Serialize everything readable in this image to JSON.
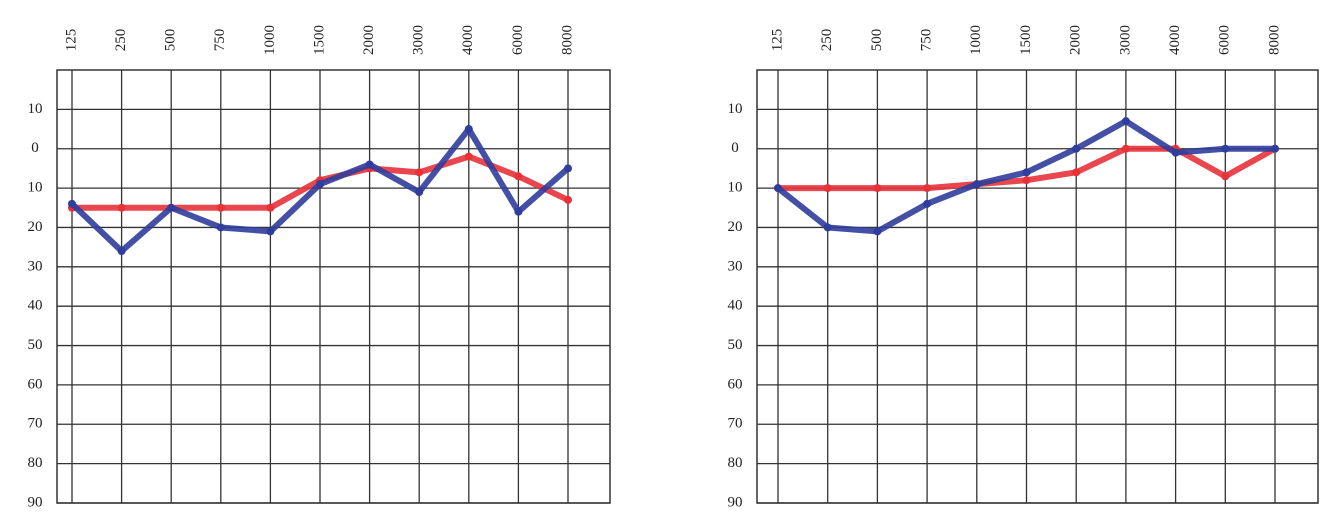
{
  "chart_data": [
    {
      "type": "line",
      "categories": [
        "125",
        "250",
        "500",
        "750",
        "1000",
        "1500",
        "2000",
        "3000",
        "4000",
        "6000",
        "8000"
      ],
      "ylim": [
        90,
        -20
      ],
      "yticks": [
        {
          "value": -10,
          "label": "10"
        },
        0,
        10,
        20,
        30,
        40,
        50,
        60,
        70,
        80,
        90
      ],
      "grid": true,
      "series": [
        {
          "color": "#e8323a",
          "values": [
            15,
            15,
            15,
            15,
            15,
            8,
            5,
            6,
            2,
            7,
            13
          ]
        },
        {
          "color": "#2f3d9c",
          "values": [
            14,
            26,
            15,
            20,
            21,
            9,
            4,
            11,
            -5,
            16,
            5
          ]
        }
      ]
    },
    {
      "type": "line",
      "categories": [
        "125",
        "250",
        "500",
        "750",
        "1000",
        "1500",
        "2000",
        "3000",
        "4000",
        "6000",
        "8000"
      ],
      "ylim": [
        90,
        -20
      ],
      "yticks": [
        {
          "value": -10,
          "label": "10"
        },
        0,
        10,
        20,
        30,
        40,
        50,
        60,
        70,
        80,
        90
      ],
      "grid": true,
      "series": [
        {
          "color": "#e8323a",
          "values": [
            10,
            10,
            10,
            10,
            9,
            8,
            6,
            0,
            0,
            7,
            0
          ]
        },
        {
          "color": "#2f3d9c",
          "values": [
            10,
            20,
            21,
            14,
            9,
            6,
            0,
            -7,
            1,
            0,
            0
          ]
        }
      ]
    }
  ]
}
